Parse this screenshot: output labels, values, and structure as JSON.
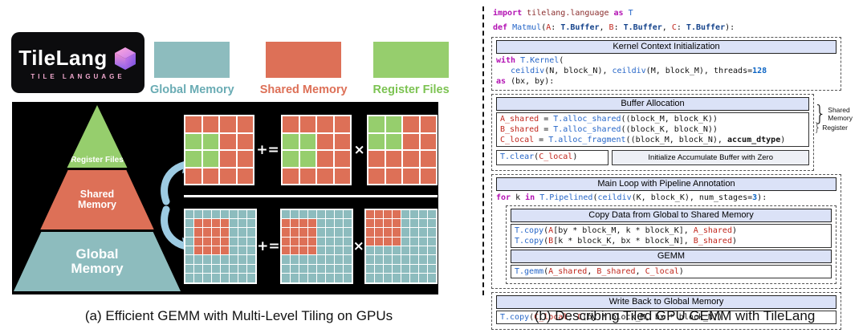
{
  "captions": {
    "left": "(a) Efficient GEMM with Multi-Level Tiling on GPUs",
    "right": "(b) Describing Tiled GPU GEMM with TileLang"
  },
  "logo": {
    "title": "TileLang",
    "subtitle": "TILE LANGUAGE"
  },
  "legend": {
    "items": [
      {
        "label": "Global Memory",
        "color": "#8dbcbe",
        "text_color": "#6aacb4"
      },
      {
        "label": "Shared Memory",
        "color": "#dd7057",
        "text_color": "#dd7057"
      },
      {
        "label": "Register Files",
        "color": "#96ce6d",
        "text_color": "#7cc352"
      }
    ]
  },
  "pyramid": {
    "levels": [
      {
        "label": "Register Files",
        "color": "#96ce6d"
      },
      {
        "label": "Shared Memory",
        "color": "#dd7057"
      },
      {
        "label": "Global Memory",
        "color": "#8dbcbe"
      }
    ]
  },
  "tiling": {
    "top": {
      "size": 4,
      "base_color": "#dd7057",
      "highlight_color": "#96ce6d",
      "op_accumulate": "+=",
      "op_multiply": "×",
      "grids": [
        {
          "name": "shared-accumulator-tile",
          "highlights": [
            [
              1,
              0,
              2,
              1
            ]
          ]
        },
        {
          "name": "shared-a-tile",
          "highlights": [
            [
              1,
              0,
              2,
              1
            ]
          ]
        },
        {
          "name": "shared-b-tile",
          "highlights": [
            [
              0,
              0,
              1,
              1
            ]
          ]
        }
      ]
    },
    "bottom": {
      "size": 8,
      "base_color": "#8dbcbe",
      "highlight_color": "#dd7057",
      "op_accumulate": "+=",
      "op_multiply": "×",
      "grids": [
        {
          "name": "global-c-matrix",
          "highlights": [
            [
              1,
              1,
              4,
              4
            ]
          ]
        },
        {
          "name": "global-a-matrix",
          "highlights": [
            [
              1,
              0,
              4,
              3
            ]
          ]
        },
        {
          "name": "global-b-matrix",
          "highlights": [
            [
              0,
              0,
              3,
              3
            ]
          ]
        }
      ]
    }
  },
  "code": {
    "import_line": [
      [
        "kw",
        "import "
      ],
      [
        "mod",
        "tilelang.language "
      ],
      [
        "kw",
        "as "
      ],
      [
        "cls",
        "T"
      ]
    ],
    "def_line": [
      [
        "kw",
        "def "
      ],
      [
        "fn",
        "Matmul"
      ],
      [
        "pl",
        "("
      ],
      [
        "var",
        "A"
      ],
      [
        "pl",
        ": "
      ],
      [
        "type",
        "T.Buffer"
      ],
      [
        "pl",
        ", "
      ],
      [
        "var",
        "B"
      ],
      [
        "pl",
        ": "
      ],
      [
        "type",
        "T.Buffer"
      ],
      [
        "pl",
        ", "
      ],
      [
        "var",
        "C"
      ],
      [
        "pl",
        ": "
      ],
      [
        "type",
        "T.Buffer"
      ],
      [
        "pl",
        "):"
      ]
    ],
    "kernel": {
      "header": "Kernel Context Initialization",
      "lines": [
        [
          [
            "kw",
            "with "
          ],
          [
            "fn",
            "T.Kernel"
          ],
          [
            "pl",
            "("
          ]
        ],
        [
          [
            "pl",
            "   "
          ],
          [
            "fn",
            "ceildiv"
          ],
          [
            "pl",
            "(N, block_N), "
          ],
          [
            "fn",
            "ceildiv"
          ],
          [
            "pl",
            "(M, block_M), threads="
          ],
          [
            "num",
            "128"
          ]
        ],
        [
          [
            "kw",
            "as "
          ],
          [
            "pl",
            "(bx, by):"
          ]
        ]
      ]
    },
    "buffer": {
      "header": "Buffer Allocation",
      "lines": [
        [
          [
            "var",
            "A_shared"
          ],
          [
            "pl",
            " = "
          ],
          [
            "fn",
            "T.alloc_shared"
          ],
          [
            "pl",
            "((block_M, block_K))"
          ]
        ],
        [
          [
            "var",
            "B_shared"
          ],
          [
            "pl",
            " = "
          ],
          [
            "fn",
            "T.alloc_shared"
          ],
          [
            "pl",
            "((block_K, block_N))"
          ]
        ],
        [
          [
            "var",
            "C_local"
          ],
          [
            "pl",
            " = "
          ],
          [
            "fn",
            "T.alloc_fragment"
          ],
          [
            "pl",
            "((block_M, block_N), "
          ],
          [
            "bold",
            "accum_dtype"
          ],
          [
            "pl",
            ")"
          ]
        ]
      ],
      "side_labels": [
        "Shared Memory",
        "Register"
      ]
    },
    "clear": {
      "line": [
        [
          "fn",
          "T.clear"
        ],
        [
          "pl",
          "("
        ],
        [
          "var",
          "C_local"
        ],
        [
          "pl",
          ")"
        ]
      ],
      "annotation": "Initialize Accumulate Buffer with Zero"
    },
    "main_loop": {
      "header": "Main Loop with Pipeline Annotation",
      "for_line": [
        [
          "kw",
          "for "
        ],
        [
          "pl",
          "k "
        ],
        [
          "kw",
          "in "
        ],
        [
          "fn",
          "T.Pipelined"
        ],
        [
          "pl",
          "("
        ],
        [
          "fn",
          "ceildiv"
        ],
        [
          "pl",
          "(K, block_K), num_stages="
        ],
        [
          "num",
          "3"
        ],
        [
          "pl",
          "):"
        ]
      ],
      "copy": {
        "header": "Copy Data from Global to Shared Memory",
        "lines": [
          [
            [
              "fn",
              "T.copy"
            ],
            [
              "pl",
              "("
            ],
            [
              "var",
              "A"
            ],
            [
              "pl",
              "[by * block_M, k * block_K], "
            ],
            [
              "var",
              "A_shared"
            ],
            [
              "pl",
              ")"
            ]
          ],
          [
            [
              "fn",
              "T.copy"
            ],
            [
              "pl",
              "("
            ],
            [
              "var",
              "B"
            ],
            [
              "pl",
              "[k * block_K, bx * block_N], "
            ],
            [
              "var",
              "B_shared"
            ],
            [
              "pl",
              ")"
            ]
          ]
        ]
      },
      "gemm": {
        "header": "GEMM",
        "line": [
          [
            "fn",
            "T.gemm"
          ],
          [
            "pl",
            "("
          ],
          [
            "var",
            "A_shared"
          ],
          [
            "pl",
            ", "
          ],
          [
            "var",
            "B_shared"
          ],
          [
            "pl",
            ", "
          ],
          [
            "var",
            "C_local"
          ],
          [
            "pl",
            ")"
          ]
        ]
      }
    },
    "writeback": {
      "header": "Write Back to Global Memory",
      "line": [
        [
          "fn",
          "T.copy"
        ],
        [
          "pl",
          "("
        ],
        [
          "var",
          "C_local"
        ],
        [
          "pl",
          ", "
        ],
        [
          "var",
          "C"
        ],
        [
          "pl",
          "[by * block_M, bx * block_N])"
        ]
      ]
    }
  }
}
